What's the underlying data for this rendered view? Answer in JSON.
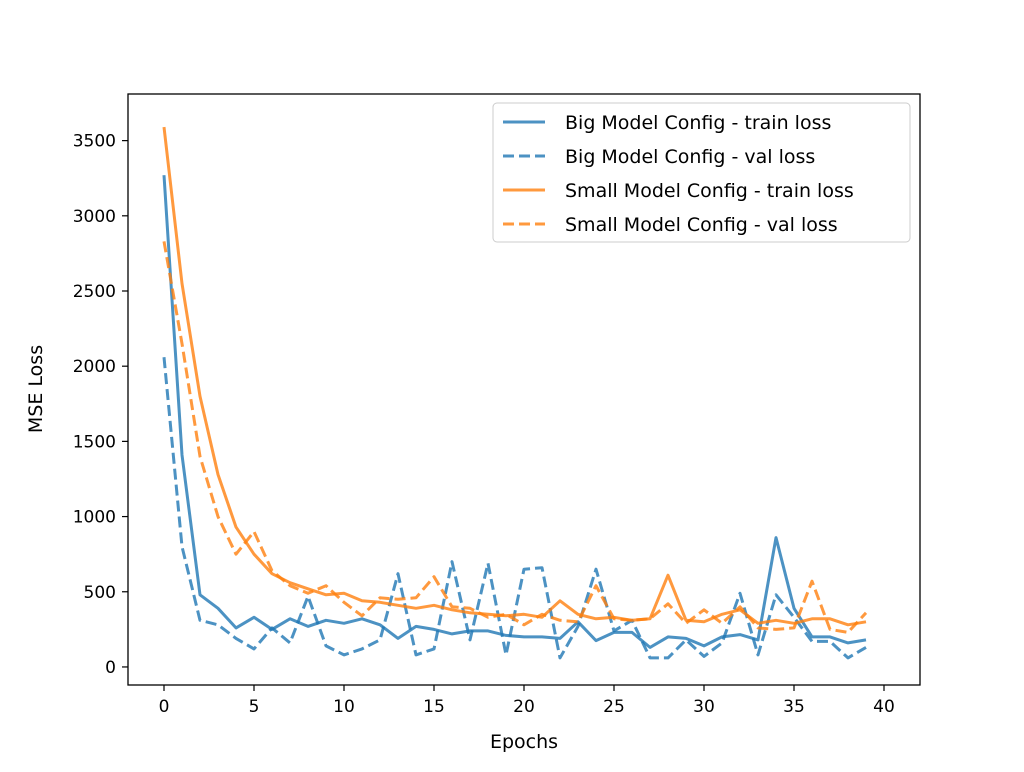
{
  "chart_data": {
    "type": "line",
    "xlabel": "Epochs",
    "ylabel": "MSE Loss",
    "xlim": [
      -2,
      42
    ],
    "ylim": [
      -120,
      3810
    ],
    "xticks": [
      0,
      5,
      10,
      15,
      20,
      25,
      30,
      35,
      40
    ],
    "yticks": [
      0,
      500,
      1000,
      1500,
      2000,
      2500,
      3000,
      3500
    ],
    "grid": false,
    "legend_position": "top-right",
    "x": [
      0,
      1,
      2,
      3,
      4,
      5,
      6,
      7,
      8,
      9,
      10,
      11,
      12,
      13,
      14,
      15,
      16,
      17,
      18,
      19,
      20,
      21,
      22,
      23,
      24,
      25,
      26,
      27,
      28,
      29,
      30,
      31,
      32,
      33,
      34,
      35,
      36,
      37,
      38,
      39
    ],
    "series": [
      {
        "name": "Big Model Config - train loss",
        "color": "#1f77b4",
        "dash": false,
        "values": [
          3270,
          1410,
          480,
          390,
          260,
          330,
          250,
          320,
          270,
          310,
          290,
          320,
          280,
          190,
          270,
          250,
          220,
          240,
          240,
          210,
          200,
          200,
          190,
          300,
          175,
          230,
          230,
          130,
          200,
          190,
          140,
          200,
          215,
          180,
          860,
          390,
          200,
          200,
          160,
          180
        ]
      },
      {
        "name": "Big Model Config - val loss",
        "color": "#1f77b4",
        "dash": true,
        "values": [
          2060,
          800,
          310,
          280,
          190,
          120,
          260,
          160,
          470,
          140,
          80,
          120,
          180,
          620,
          80,
          120,
          700,
          180,
          690,
          80,
          650,
          660,
          60,
          270,
          650,
          240,
          310,
          60,
          60,
          180,
          70,
          160,
          490,
          80,
          480,
          330,
          170,
          170,
          60,
          130
        ]
      },
      {
        "name": "Small Model Config - train loss",
        "color": "#ff7f0e",
        "dash": false,
        "values": [
          3590,
          2550,
          1800,
          1280,
          930,
          750,
          620,
          560,
          520,
          480,
          490,
          440,
          430,
          410,
          390,
          410,
          380,
          360,
          350,
          340,
          350,
          330,
          440,
          350,
          320,
          330,
          310,
          320,
          610,
          310,
          300,
          350,
          380,
          290,
          310,
          290,
          320,
          320,
          280,
          300
        ]
      },
      {
        "name": "Small Model Config - val loss",
        "color": "#ff7f0e",
        "dash": true,
        "values": [
          2830,
          2150,
          1400,
          1000,
          750,
          900,
          640,
          540,
          490,
          540,
          430,
          340,
          460,
          450,
          460,
          600,
          400,
          390,
          330,
          350,
          280,
          350,
          310,
          300,
          540,
          320,
          310,
          320,
          420,
          290,
          380,
          290,
          400,
          260,
          250,
          260,
          570,
          250,
          230,
          360
        ]
      }
    ]
  }
}
